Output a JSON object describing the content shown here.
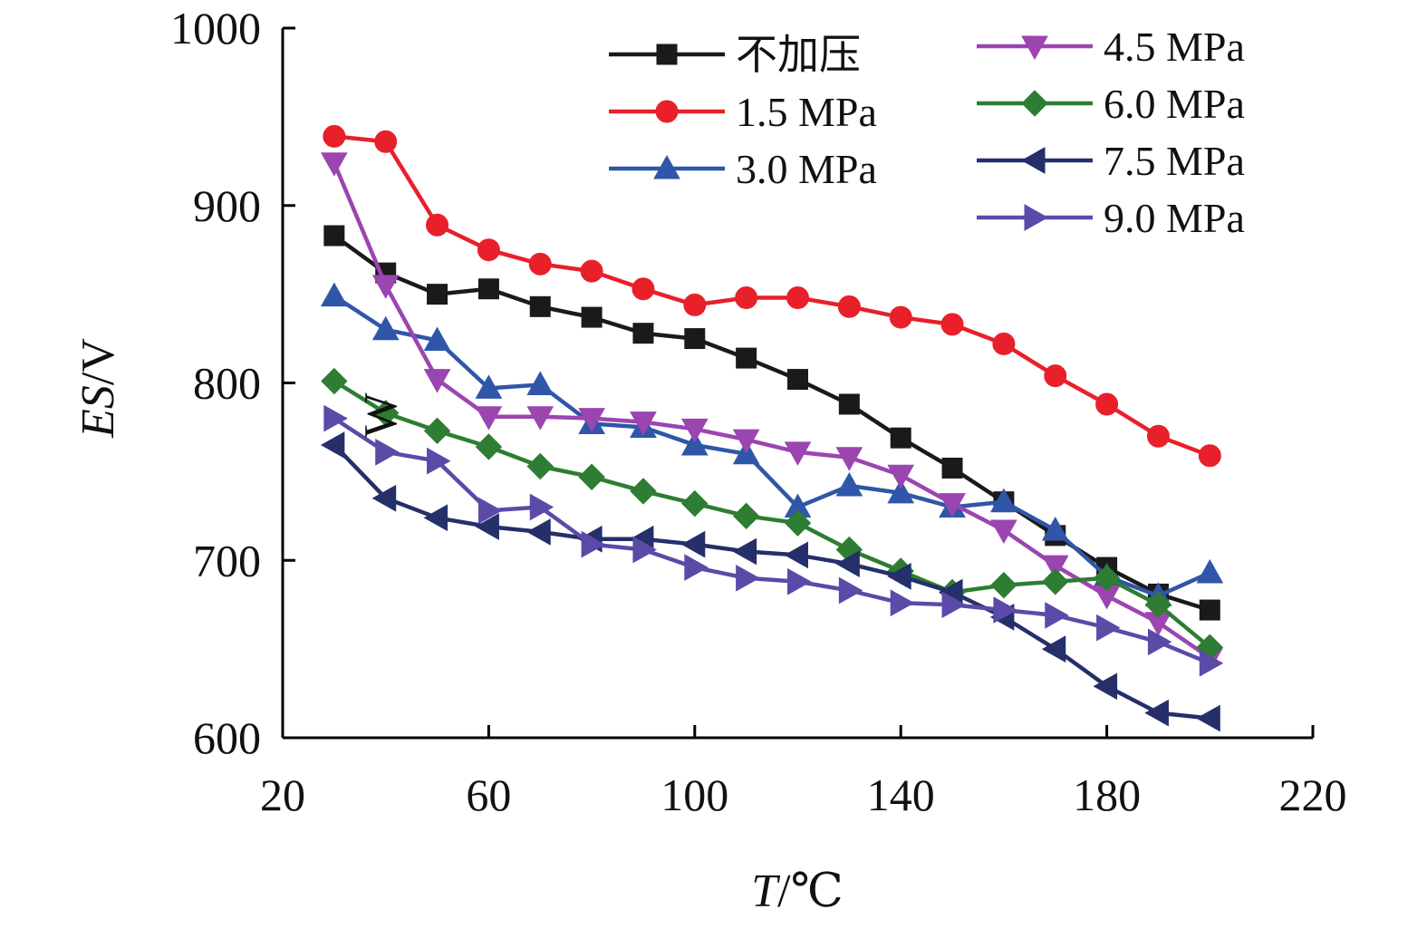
{
  "chart_data": {
    "type": "line",
    "xlabel": "T/℃",
    "xlabel_italic": "T",
    "xlabel_rest": "/℃",
    "ylabel": "ES/V",
    "ylabel_italic": "ES",
    "ylabel_rest": "/V",
    "xlim": [
      20,
      220
    ],
    "ylim": [
      600,
      1000
    ],
    "xticks": [
      20,
      60,
      100,
      140,
      180,
      220
    ],
    "yticks": [
      600,
      700,
      800,
      900,
      1000
    ],
    "grid": false,
    "legend_position": "top-right",
    "x": [
      30,
      40,
      50,
      60,
      70,
      80,
      90,
      100,
      110,
      120,
      130,
      140,
      150,
      160,
      170,
      180,
      190,
      200
    ],
    "series": [
      {
        "name": "不加压",
        "color": "#1a1a1a",
        "marker": "square",
        "values": [
          883,
          862,
          850,
          853,
          843,
          837,
          828,
          825,
          814,
          802,
          788,
          769,
          752,
          733,
          714,
          696,
          681,
          672
        ]
      },
      {
        "name": "1.5 MPa",
        "color": "#e8202a",
        "marker": "circle",
        "values": [
          939,
          936,
          889,
          875,
          867,
          863,
          853,
          844,
          848,
          848,
          843,
          837,
          833,
          822,
          804,
          788,
          770,
          759
        ]
      },
      {
        "name": "3.0 MPa",
        "color": "#2f56a8",
        "marker": "triangle-up",
        "values": [
          849,
          830,
          824,
          797,
          799,
          777,
          775,
          765,
          760,
          730,
          742,
          738,
          730,
          733,
          717,
          691,
          680,
          693
        ]
      },
      {
        "name": "4.5 MPa",
        "color": "#9b45b0",
        "marker": "triangle-down",
        "values": [
          924,
          855,
          802,
          781,
          781,
          780,
          778,
          774,
          768,
          761,
          758,
          748,
          732,
          717,
          697,
          680,
          665,
          645
        ]
      },
      {
        "name": "6.0 MPa",
        "color": "#2e7d32",
        "marker": "diamond",
        "values": [
          801,
          783,
          773,
          764,
          753,
          747,
          739,
          732,
          725,
          721,
          706,
          694,
          682,
          686,
          688,
          690,
          675,
          651
        ]
      },
      {
        "name": "7.5 MPa",
        "color": "#252f6a",
        "marker": "triangle-left",
        "values": [
          765,
          735,
          724,
          719,
          716,
          712,
          712,
          709,
          705,
          703,
          698,
          691,
          682,
          668,
          650,
          629,
          614,
          611
        ]
      },
      {
        "name": "9.0 MPa",
        "color": "#5b4aa8",
        "marker": "triangle-right",
        "values": [
          780,
          761,
          756,
          728,
          730,
          709,
          706,
          696,
          690,
          688,
          683,
          676,
          675,
          672,
          669,
          662,
          654,
          642
        ]
      }
    ],
    "annotations": [
      "W"
    ]
  }
}
